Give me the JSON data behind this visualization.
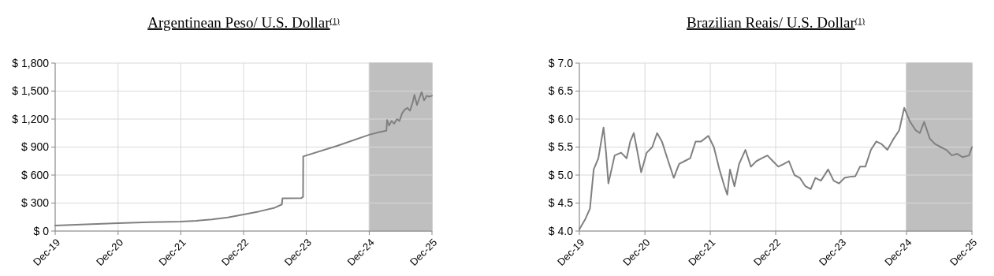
{
  "chart_data": [
    {
      "type": "line",
      "title": "Argentinean Peso/ U.S. Dollar$^{(1)}$",
      "grid": true,
      "xlim": [
        "2019-12-31",
        "2025-12-31"
      ],
      "xticks": [
        {
          "value": "2019-12-31",
          "label": "Dec-19"
        },
        {
          "value": "2020-12-31",
          "label": "Dec-20"
        },
        {
          "value": "2021-12-31",
          "label": "Dec-21"
        },
        {
          "value": "2022-12-31",
          "label": "Dec-22"
        },
        {
          "value": "2023-12-31",
          "label": "Dec-23"
        },
        {
          "value": "2024-12-31",
          "label": "Dec-24"
        },
        {
          "value": "2025-12-31",
          "label": "Dec-25"
        }
      ],
      "ylim": [
        0,
        1800
      ],
      "yticks": [
        {
          "value": 0,
          "label": "$ 0"
        },
        {
          "value": 300,
          "label": "$ 300"
        },
        {
          "value": 600,
          "label": "$ 600"
        },
        {
          "value": 900,
          "label": "$ 900"
        },
        {
          "value": 1200,
          "label": "$ 1,200"
        },
        {
          "value": 1500,
          "label": "$ 1,500"
        },
        {
          "value": 1800,
          "label": "$ 1,800"
        }
      ],
      "bands": [
        {
          "axis": "x",
          "from": "2024-12-31",
          "to": "2025-12-31",
          "color": "#bfbfbf"
        }
      ],
      "series": [
        {
          "color": "#808080",
          "x": [
            "2019-12-31",
            "2020-06-30",
            "2020-12-31",
            "2021-06-30",
            "2021-12-31",
            "2022-03-31",
            "2022-06-30",
            "2022-09-30",
            "2022-12-31",
            "2023-03-31",
            "2023-06-30",
            "2023-08-11",
            "2023-08-14",
            "2023-11-30",
            "2023-12-12",
            "2023-12-13",
            "2024-06-30",
            "2024-12-31",
            "2025-02-28",
            "2025-04-10",
            "2025-04-14",
            "2025-04-25",
            "2025-05-10",
            "2025-05-25",
            "2025-06-10",
            "2025-06-25",
            "2025-07-10",
            "2025-07-25",
            "2025-08-10",
            "2025-08-25",
            "2025-09-10",
            "2025-09-20",
            "2025-10-05",
            "2025-10-20",
            "2025-11-01",
            "2025-11-15",
            "2025-12-01",
            "2025-12-15",
            "2025-12-31"
          ],
          "values": [
            59,
            72,
            84,
            95,
            102,
            110,
            125,
            145,
            177,
            210,
            250,
            285,
            350,
            352,
            366,
            800,
            915,
            1032,
            1060,
            1075,
            1190,
            1130,
            1180,
            1150,
            1200,
            1180,
            1260,
            1300,
            1320,
            1290,
            1380,
            1460,
            1350,
            1430,
            1490,
            1400,
            1450,
            1440,
            1450
          ]
        }
      ]
    },
    {
      "type": "line",
      "title": "Brazilian Reais/ U.S. Dollar$^{(1)}$",
      "grid": true,
      "xlim": [
        "2019-12-31",
        "2025-12-31"
      ],
      "xticks": [
        {
          "value": "2019-12-31",
          "label": "Dec-19"
        },
        {
          "value": "2020-12-31",
          "label": "Dec-20"
        },
        {
          "value": "2021-12-31",
          "label": "Dec-21"
        },
        {
          "value": "2022-12-31",
          "label": "Dec-22"
        },
        {
          "value": "2023-12-31",
          "label": "Dec-23"
        },
        {
          "value": "2024-12-31",
          "label": "Dec-24"
        },
        {
          "value": "2025-12-31",
          "label": "Dec-25"
        }
      ],
      "ylim": [
        4,
        7
      ],
      "yticks": [
        {
          "value": 4,
          "label": "$ 4.0"
        },
        {
          "value": 4.5,
          "label": "$ 4.5"
        },
        {
          "value": 5,
          "label": "$ 5.0"
        },
        {
          "value": 5.5,
          "label": "$ 5.5"
        },
        {
          "value": 6,
          "label": "$ 6.0"
        },
        {
          "value": 6.5,
          "label": "$ 6.5"
        },
        {
          "value": 7,
          "label": "$ 7.0"
        }
      ],
      "bands": [
        {
          "axis": "x",
          "from": "2024-12-31",
          "to": "2025-12-31",
          "color": "#bfbfbf"
        }
      ],
      "series": [
        {
          "color": "#808080",
          "x": [
            "2019-12-31",
            "2020-01-31",
            "2020-02-28",
            "2020-03-20",
            "2020-04-15",
            "2020-05-14",
            "2020-05-28",
            "2020-06-10",
            "2020-07-15",
            "2020-08-20",
            "2020-09-20",
            "2020-10-10",
            "2020-10-30",
            "2020-11-20",
            "2020-12-10",
            "2021-01-10",
            "2021-02-10",
            "2021-03-09",
            "2021-04-05",
            "2021-05-05",
            "2021-06-10",
            "2021-07-10",
            "2021-08-10",
            "2021-09-10",
            "2021-10-10",
            "2021-11-10",
            "2021-12-20",
            "2022-01-20",
            "2022-02-20",
            "2022-03-20",
            "2022-04-05",
            "2022-04-20",
            "2022-05-15",
            "2022-06-10",
            "2022-07-15",
            "2022-08-15",
            "2022-09-15",
            "2022-10-15",
            "2022-11-15",
            "2022-12-15",
            "2023-01-15",
            "2023-02-15",
            "2023-03-15",
            "2023-04-15",
            "2023-05-15",
            "2023-06-15",
            "2023-07-15",
            "2023-08-10",
            "2023-09-10",
            "2023-10-20",
            "2023-11-20",
            "2023-12-20",
            "2024-01-20",
            "2024-02-20",
            "2024-03-20",
            "2024-04-15",
            "2024-05-15",
            "2024-06-15",
            "2024-07-15",
            "2024-08-15",
            "2024-09-15",
            "2024-10-20",
            "2024-11-20",
            "2024-12-18",
            "2025-01-20",
            "2025-02-20",
            "2025-03-15",
            "2025-04-08",
            "2025-05-10",
            "2025-06-10",
            "2025-07-10",
            "2025-08-10",
            "2025-09-10",
            "2025-10-10",
            "2025-11-10",
            "2025-12-15",
            "2025-12-31"
          ],
          "values": [
            4.03,
            4.2,
            4.4,
            5.1,
            5.3,
            5.85,
            5.4,
            4.85,
            5.35,
            5.4,
            5.3,
            5.6,
            5.75,
            5.4,
            5.05,
            5.4,
            5.5,
            5.75,
            5.6,
            5.3,
            4.95,
            5.2,
            5.25,
            5.3,
            5.6,
            5.6,
            5.7,
            5.5,
            5.1,
            4.8,
            4.65,
            5.1,
            4.8,
            5.2,
            5.45,
            5.15,
            5.25,
            5.3,
            5.35,
            5.25,
            5.15,
            5.2,
            5.25,
            5.0,
            4.95,
            4.8,
            4.75,
            4.95,
            4.9,
            5.1,
            4.9,
            4.85,
            4.95,
            4.97,
            4.98,
            5.15,
            5.15,
            5.45,
            5.6,
            5.55,
            5.45,
            5.65,
            5.8,
            6.2,
            5.95,
            5.8,
            5.75,
            5.95,
            5.65,
            5.55,
            5.5,
            5.45,
            5.35,
            5.38,
            5.32,
            5.35,
            5.5
          ]
        }
      ]
    }
  ]
}
